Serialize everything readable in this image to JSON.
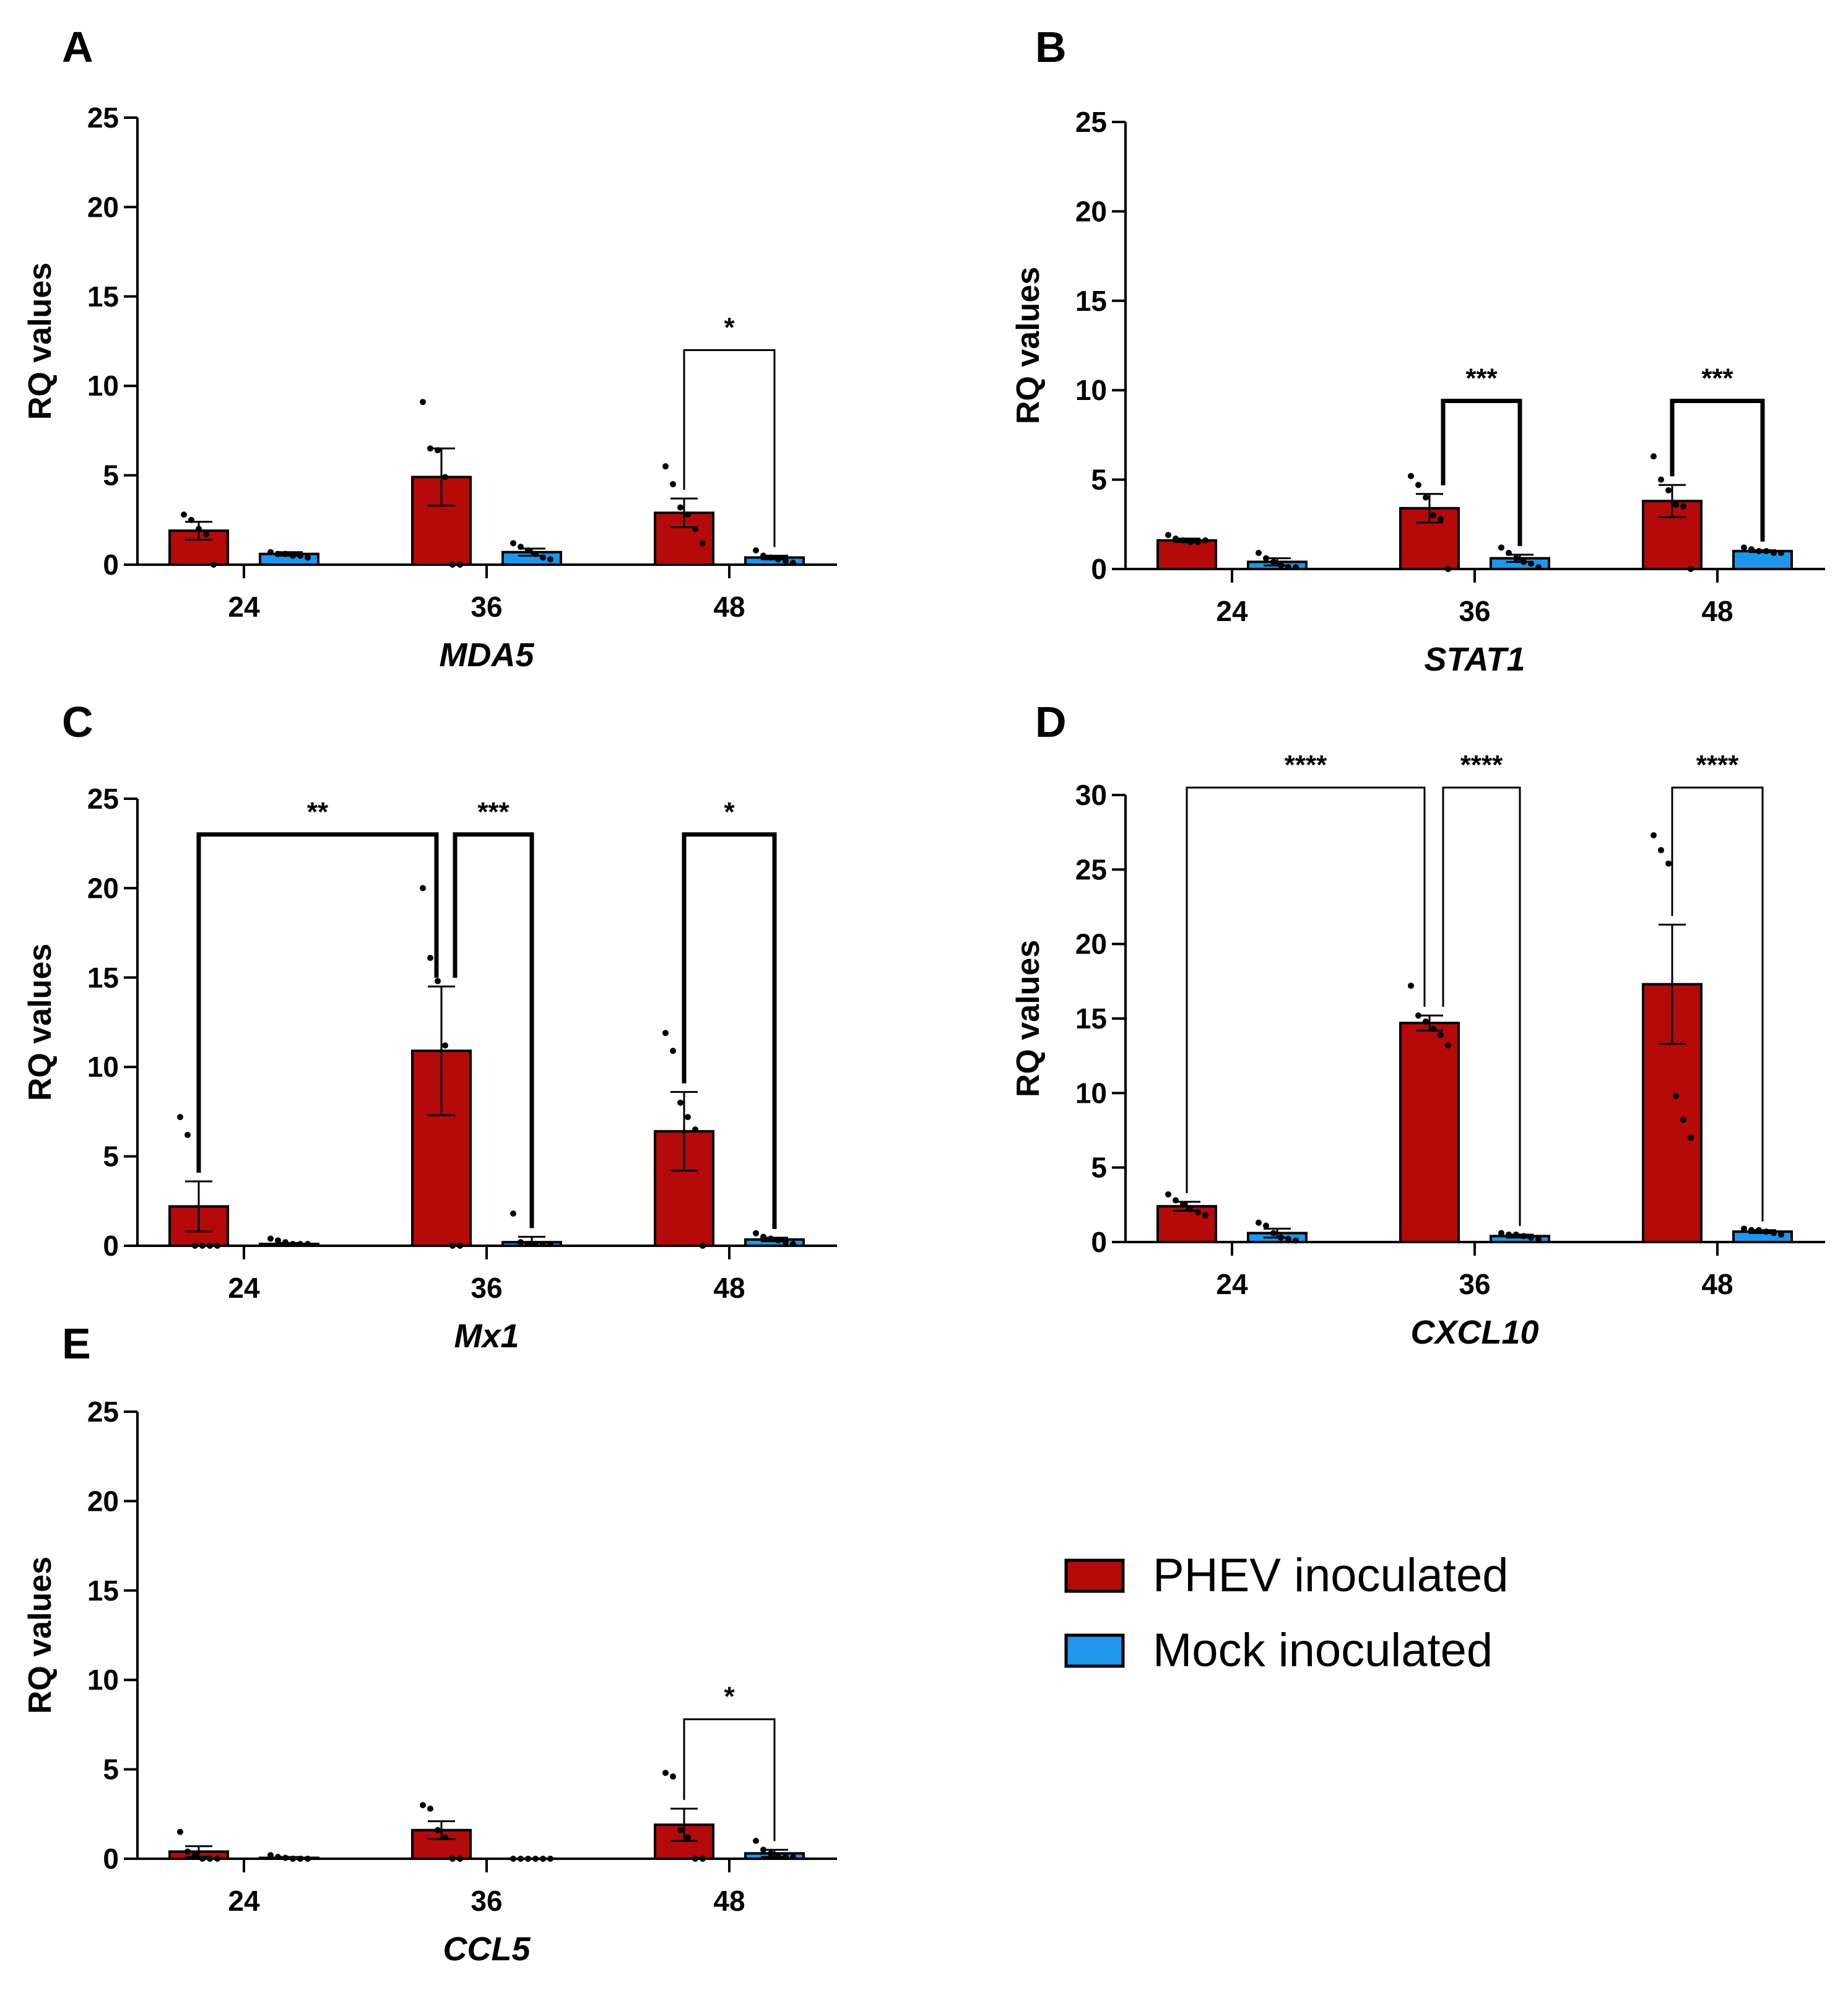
{
  "colors": {
    "phev": "#B40A0A",
    "mock": "#1E96EB",
    "axis": "#000000"
  },
  "legend": [
    {
      "label": "PHEV inoculated",
      "color": "#B40A0A"
    },
    {
      "label": "Mock inoculated",
      "color": "#1E96EB"
    }
  ],
  "chart_data": [
    {
      "type": "bar",
      "panel": "A",
      "xlabel": "MDA5",
      "ylabel": "RQ values",
      "categories": [
        "24",
        "36",
        "48"
      ],
      "ylim": [
        0,
        25
      ],
      "yticks": [
        0,
        5,
        10,
        15,
        20,
        25
      ],
      "series": [
        {
          "name": "PHEV inoculated",
          "values": [
            1.9,
            4.9,
            2.9
          ],
          "sem": [
            0.5,
            1.6,
            0.8
          ],
          "points": [
            [
              2.8,
              2.5,
              2.0,
              1.7,
              0
            ],
            [
              9.1,
              6.5,
              6.4,
              4.9,
              0,
              0
            ],
            [
              5.5,
              4.5,
              3.2,
              2.8,
              2.0,
              1.2
            ]
          ]
        },
        {
          "name": "Mock inoculated",
          "values": [
            0.6,
            0.7,
            0.4
          ],
          "sem": [
            0.1,
            0.2,
            0.1
          ],
          "points": [
            [
              0.7,
              0.6,
              0.6,
              0.5,
              0.5,
              0.4
            ],
            [
              1.2,
              1.0,
              0.8,
              0.6,
              0.4,
              0.3
            ],
            [
              0.8,
              0.5,
              0.4,
              0.3,
              0.2,
              0.1
            ]
          ]
        }
      ],
      "significance": [
        {
          "label": "*",
          "from": "48|0",
          "to": "48|1",
          "height": 12,
          "heavy": false
        }
      ]
    },
    {
      "type": "bar",
      "panel": "B",
      "xlabel": "STAT1",
      "ylabel": "RQ values",
      "categories": [
        "24",
        "36",
        "48"
      ],
      "ylim": [
        0,
        25
      ],
      "yticks": [
        0,
        5,
        10,
        15,
        20,
        25
      ],
      "series": [
        {
          "name": "PHEV inoculated",
          "values": [
            1.6,
            3.4,
            3.8
          ],
          "sem": [
            0.1,
            0.8,
            0.9
          ],
          "points": [
            [
              1.9,
              1.7,
              1.6,
              1.5,
              1.5,
              1.6
            ],
            [
              5.2,
              4.7,
              4.0,
              3.0,
              2.8,
              0
            ],
            [
              6.3,
              5.0,
              4.4,
              3.6,
              3.5,
              0
            ]
          ]
        },
        {
          "name": "Mock inoculated",
          "values": [
            0.4,
            0.6,
            1.0
          ],
          "sem": [
            0.2,
            0.2,
            0.05
          ],
          "points": [
            [
              0.9,
              0.6,
              0.4,
              0.2,
              0.1,
              0.1
            ],
            [
              1.2,
              0.9,
              0.6,
              0.4,
              0.3,
              0.1
            ],
            [
              1.2,
              1.1,
              1.0,
              1.0,
              0.9,
              0.9
            ]
          ]
        }
      ],
      "significance": [
        {
          "label": "***",
          "from": "36|0",
          "to": "36|1",
          "height": 9.4,
          "heavy": true
        },
        {
          "label": "***",
          "from": "48|0",
          "to": "48|1",
          "height": 9.4,
          "heavy": true
        }
      ]
    },
    {
      "type": "bar",
      "panel": "C",
      "xlabel": "Mx1",
      "ylabel": "RQ values",
      "categories": [
        "24",
        "36",
        "48"
      ],
      "ylim": [
        0,
        25
      ],
      "yticks": [
        0,
        5,
        10,
        15,
        20,
        25
      ],
      "series": [
        {
          "name": "PHEV inoculated",
          "values": [
            2.2,
            10.9,
            6.4
          ],
          "sem": [
            1.4,
            3.6,
            2.2
          ],
          "points": [
            [
              7.2,
              6.2,
              0,
              0,
              0,
              0
            ],
            [
              20.0,
              16.1,
              14.8,
              11.2,
              0,
              0
            ],
            [
              11.9,
              10.9,
              8.0,
              7.2,
              6.5,
              0
            ]
          ]
        },
        {
          "name": "Mock inoculated",
          "values": [
            0.1,
            0.2,
            0.35
          ],
          "sem": [
            0.05,
            0.3,
            0.1
          ],
          "points": [
            [
              0.4,
              0.3,
              0.2,
              0.1,
              0.1,
              0.1
            ],
            [
              1.8,
              0.2,
              0.1,
              0.1,
              0.1,
              0.1
            ],
            [
              0.7,
              0.5,
              0.4,
              0.3,
              0.2,
              0.1
            ]
          ]
        }
      ],
      "significance": [
        {
          "label": "**",
          "from": "24|0",
          "to": "36|0",
          "height": 23,
          "heavy": true
        },
        {
          "label": "***",
          "from": "36|0",
          "to": "36|1",
          "height": 23,
          "heavy": true
        },
        {
          "label": "*",
          "from": "48|0",
          "to": "48|1",
          "height": 23,
          "heavy": true
        }
      ]
    },
    {
      "type": "bar",
      "panel": "D",
      "xlabel": "CXCL10",
      "ylabel": "RQ values",
      "categories": [
        "24",
        "36",
        "48"
      ],
      "ylim": [
        0,
        30
      ],
      "yticks": [
        0,
        5,
        10,
        15,
        20,
        25,
        30
      ],
      "series": [
        {
          "name": "PHEV inoculated",
          "values": [
            2.4,
            14.7,
            17.3
          ],
          "sem": [
            0.3,
            0.5,
            4.0
          ],
          "points": [
            [
              3.2,
              2.8,
              2.5,
              2.2,
              2.0,
              1.8
            ],
            [
              17.2,
              15.2,
              14.8,
              14.3,
              13.9,
              13.2
            ],
            [
              27.3,
              26.3,
              25.4,
              9.8,
              8.2,
              7.0
            ]
          ]
        },
        {
          "name": "Mock inoculated",
          "values": [
            0.6,
            0.4,
            0.7
          ],
          "sem": [
            0.3,
            0.1,
            0.1
          ],
          "points": [
            [
              1.3,
              1.1,
              0.6,
              0.3,
              0.2,
              0.1
            ],
            [
              0.6,
              0.5,
              0.5,
              0.4,
              0.3,
              0.2
            ],
            [
              0.9,
              0.8,
              0.8,
              0.7,
              0.6,
              0.5
            ]
          ]
        }
      ],
      "significance": [
        {
          "label": "****",
          "from": "24|0",
          "to": "36|0",
          "height": 30.5,
          "heavy": false
        },
        {
          "label": "****",
          "from": "36|0",
          "to": "36|1",
          "height": 30.5,
          "heavy": false
        },
        {
          "label": "****",
          "from": "48|0",
          "to": "48|1",
          "height": 30.5,
          "heavy": false
        }
      ]
    },
    {
      "type": "bar",
      "panel": "E",
      "xlabel": "CCL5",
      "ylabel": "RQ values",
      "categories": [
        "24",
        "36",
        "48"
      ],
      "ylim": [
        0,
        25
      ],
      "yticks": [
        0,
        5,
        10,
        15,
        20,
        25
      ],
      "series": [
        {
          "name": "PHEV inoculated",
          "values": [
            0.4,
            1.6,
            1.9
          ],
          "sem": [
            0.3,
            0.5,
            0.9
          ],
          "points": [
            [
              1.5,
              0.4,
              0.2,
              0,
              0,
              0
            ],
            [
              3.0,
              2.8,
              1.6,
              1.2,
              0,
              0
            ],
            [
              4.8,
              4.6,
              1.6,
              1.2,
              0,
              0
            ]
          ]
        },
        {
          "name": "Mock inoculated",
          "values": [
            0.05,
            0.0,
            0.3
          ],
          "sem": [
            0.05,
            0.0,
            0.2
          ],
          "points": [
            [
              0.2,
              0.1,
              0.05,
              0,
              0,
              0
            ],
            [
              0,
              0,
              0,
              0,
              0,
              0
            ],
            [
              1.0,
              0.5,
              0.3,
              0.1,
              0.1,
              0.1
            ]
          ]
        }
      ],
      "significance": [
        {
          "label": "*",
          "from": "48|0",
          "to": "48|1",
          "height": 7.8,
          "heavy": false
        }
      ]
    }
  ]
}
